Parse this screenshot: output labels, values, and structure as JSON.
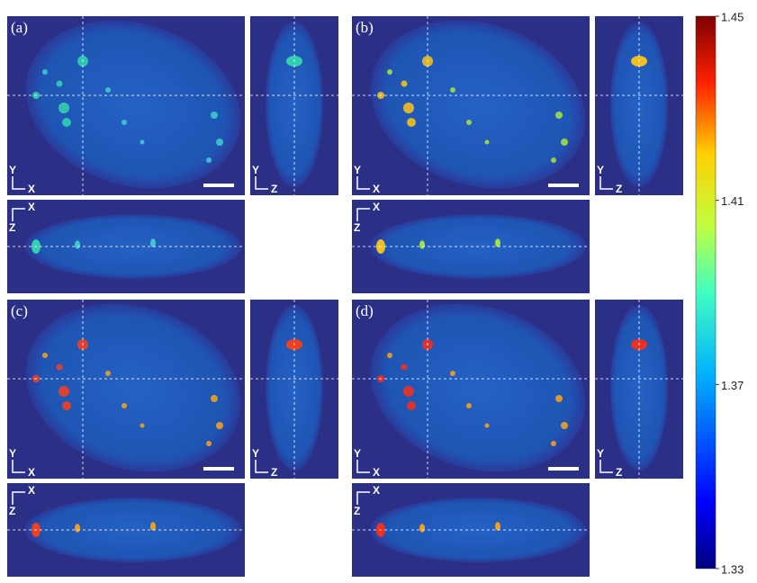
{
  "panels": [
    {
      "label": "(a)"
    },
    {
      "label": "(b)"
    },
    {
      "label": "(c)"
    },
    {
      "label": "(d)"
    }
  ],
  "axes": {
    "x": "X",
    "y": "Y",
    "z": "Z"
  },
  "colorbar": {
    "lim": [
      1.33,
      1.45
    ],
    "ticks": [
      1.33,
      1.37,
      1.41,
      1.45
    ]
  }
}
